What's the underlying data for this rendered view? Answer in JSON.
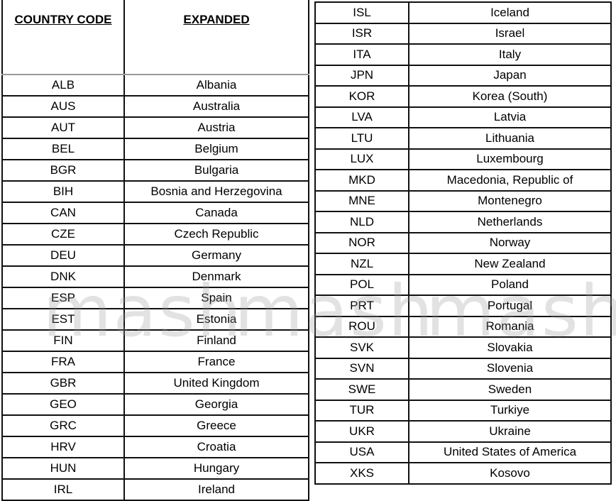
{
  "left_table": {
    "headers": [
      "COUNTRY CODE",
      "EXPANDED"
    ],
    "rows": [
      [
        "ALB",
        "Albania"
      ],
      [
        "AUS",
        "Australia"
      ],
      [
        "AUT",
        "Austria"
      ],
      [
        "BEL",
        "Belgium"
      ],
      [
        "BGR",
        "Bulgaria"
      ],
      [
        "BIH",
        "Bosnia and Herzegovina"
      ],
      [
        "CAN",
        "Canada"
      ],
      [
        "CZE",
        "Czech Republic"
      ],
      [
        "DEU",
        "Germany"
      ],
      [
        "DNK",
        "Denmark"
      ],
      [
        "ESP",
        "Spain"
      ],
      [
        "EST",
        "Estonia"
      ],
      [
        "FIN",
        "Finland"
      ],
      [
        "FRA",
        "France"
      ],
      [
        "GBR",
        "United Kingdom"
      ],
      [
        "GEO",
        "Georgia"
      ],
      [
        "GRC",
        "Greece"
      ],
      [
        "HRV",
        "Croatia"
      ],
      [
        "HUN",
        "Hungary"
      ],
      [
        "IRL",
        "Ireland"
      ]
    ]
  },
  "right_table": {
    "rows": [
      [
        "ISL",
        "Iceland"
      ],
      [
        "ISR",
        "Israel"
      ],
      [
        "ITA",
        "Italy"
      ],
      [
        "JPN",
        "Japan"
      ],
      [
        "KOR",
        "Korea (South)"
      ],
      [
        "LVA",
        "Latvia"
      ],
      [
        "LTU",
        "Lithuania"
      ],
      [
        "LUX",
        "Luxembourg"
      ],
      [
        "MKD",
        "Macedonia, Republic of"
      ],
      [
        "MNE",
        "Montenegro"
      ],
      [
        "NLD",
        "Netherlands"
      ],
      [
        "NOR",
        "Norway"
      ],
      [
        "NZL",
        "New Zealand"
      ],
      [
        "POL",
        "Poland"
      ],
      [
        "PRT",
        "Portugal"
      ],
      [
        "ROU",
        "Romania"
      ],
      [
        "SVK",
        "Slovakia"
      ],
      [
        "SVN",
        "Slovenia"
      ],
      [
        "SWE",
        "Sweden"
      ],
      [
        "TUR",
        "Turkiye"
      ],
      [
        "UKR",
        "Ukraine"
      ],
      [
        "USA",
        "United States of America"
      ],
      [
        "XKS",
        "Kosovo"
      ]
    ]
  },
  "watermark": {
    "text": "mash"
  }
}
